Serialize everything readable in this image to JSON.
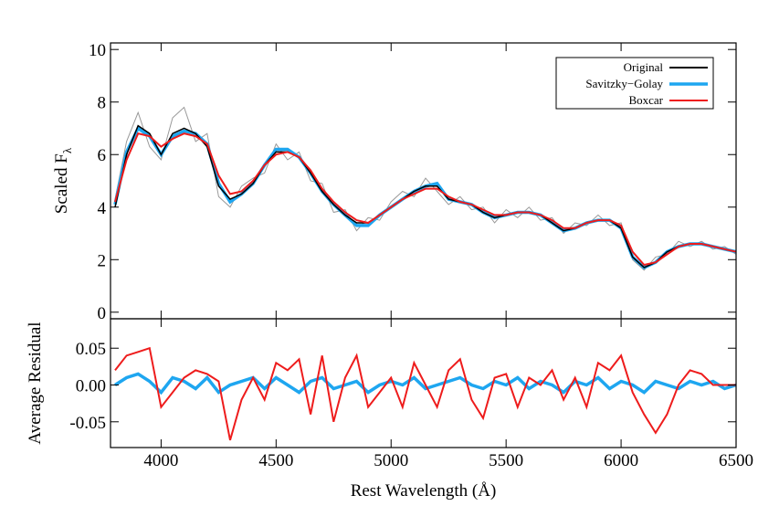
{
  "chart_data": [
    {
      "type": "line",
      "ylabel": "Scaled F",
      "ylabel_sub": "λ",
      "x": [
        3800,
        3850,
        3900,
        3950,
        4000,
        4050,
        4100,
        4150,
        4200,
        4250,
        4300,
        4350,
        4400,
        4450,
        4500,
        4550,
        4600,
        4650,
        4700,
        4750,
        4800,
        4850,
        4900,
        4950,
        5000,
        5050,
        5100,
        5150,
        5200,
        5250,
        5300,
        5350,
        5400,
        5450,
        5500,
        5550,
        5600,
        5650,
        5700,
        5750,
        5800,
        5850,
        5900,
        5950,
        6000,
        6050,
        6100,
        6150,
        6200,
        6250,
        6300,
        6350,
        6400,
        6450,
        6500
      ],
      "xlim": [
        3780,
        6500
      ],
      "xticks": [
        4000,
        4500,
        5000,
        5500,
        6000,
        6500
      ],
      "ylim": [
        -0.25,
        10.25
      ],
      "yticks": [
        0,
        2,
        4,
        6,
        8,
        10
      ],
      "legend": "upper right",
      "series": [
        {
          "color": "#999999",
          "values": [
            4.3,
            6.5,
            7.6,
            6.3,
            5.8,
            7.4,
            7.8,
            6.5,
            6.8,
            4.4,
            4.0,
            4.8,
            5.1,
            5.3,
            6.4,
            5.8,
            6.1,
            5.0,
            4.9,
            3.8,
            3.9,
            3.1,
            3.6,
            3.5,
            4.2,
            4.6,
            4.4,
            5.1,
            4.6,
            4.1,
            4.4,
            3.9,
            4.0,
            3.4,
            3.9,
            3.6,
            4.0,
            3.5,
            3.6,
            3.0,
            3.4,
            3.3,
            3.7,
            3.3,
            3.4,
            2.0,
            1.6,
            2.1,
            2.2,
            2.7,
            2.5,
            2.7,
            2.4,
            2.5,
            2.2
          ]
        },
        {
          "name": "Savitzky−Golay",
          "color": "#1ea6f0",
          "values": [
            4.1,
            6.1,
            7.0,
            6.7,
            6.0,
            6.7,
            6.9,
            6.8,
            6.4,
            4.9,
            4.2,
            4.5,
            4.9,
            5.6,
            6.2,
            6.2,
            5.9,
            5.3,
            4.6,
            4.1,
            3.7,
            3.3,
            3.3,
            3.7,
            4.0,
            4.3,
            4.6,
            4.8,
            4.9,
            4.3,
            4.2,
            4.1,
            3.8,
            3.6,
            3.7,
            3.8,
            3.8,
            3.7,
            3.4,
            3.1,
            3.2,
            3.4,
            3.5,
            3.5,
            3.2,
            2.1,
            1.7,
            1.9,
            2.3,
            2.5,
            2.6,
            2.6,
            2.5,
            2.4,
            2.3
          ]
        },
        {
          "name": "Original",
          "color": "#000000",
          "values": [
            4.0,
            6.0,
            7.1,
            6.8,
            6.0,
            6.8,
            7.0,
            6.8,
            6.3,
            4.8,
            4.3,
            4.5,
            4.9,
            5.6,
            6.1,
            6.1,
            5.9,
            5.3,
            4.6,
            4.1,
            3.7,
            3.4,
            3.4,
            3.7,
            4.0,
            4.3,
            4.6,
            4.8,
            4.8,
            4.3,
            4.2,
            4.1,
            3.8,
            3.6,
            3.7,
            3.8,
            3.8,
            3.7,
            3.4,
            3.1,
            3.2,
            3.4,
            3.5,
            3.5,
            3.2,
            2.1,
            1.7,
            1.9,
            2.3,
            2.5,
            2.6,
            2.6,
            2.5,
            2.4,
            2.3
          ]
        },
        {
          "name": "Boxcar",
          "color": "#ee1c1c",
          "values": [
            4.2,
            5.8,
            6.8,
            6.7,
            6.3,
            6.6,
            6.8,
            6.7,
            6.4,
            5.2,
            4.5,
            4.6,
            5.0,
            5.6,
            6.0,
            6.1,
            5.9,
            5.4,
            4.7,
            4.2,
            3.8,
            3.5,
            3.4,
            3.7,
            4.0,
            4.3,
            4.5,
            4.7,
            4.7,
            4.4,
            4.2,
            4.1,
            3.9,
            3.7,
            3.7,
            3.8,
            3.8,
            3.7,
            3.5,
            3.2,
            3.2,
            3.4,
            3.5,
            3.5,
            3.3,
            2.3,
            1.8,
            1.9,
            2.2,
            2.5,
            2.6,
            2.6,
            2.5,
            2.4,
            2.3
          ]
        }
      ]
    },
    {
      "type": "line",
      "ylabel": "Average Residual",
      "xlabel": "Rest Wavelength (Å)",
      "x": [
        3800,
        3850,
        3900,
        3950,
        4000,
        4050,
        4100,
        4150,
        4200,
        4250,
        4300,
        4350,
        4400,
        4450,
        4500,
        4550,
        4600,
        4650,
        4700,
        4750,
        4800,
        4850,
        4900,
        4950,
        5000,
        5050,
        5100,
        5150,
        5200,
        5250,
        5300,
        5350,
        5400,
        5450,
        5500,
        5550,
        5600,
        5650,
        5700,
        5750,
        5800,
        5850,
        5900,
        5950,
        6000,
        6050,
        6100,
        6150,
        6200,
        6250,
        6300,
        6350,
        6400,
        6450,
        6500
      ],
      "xlim": [
        3780,
        6500
      ],
      "xticks": [
        4000,
        4500,
        5000,
        5500,
        6000,
        6500
      ],
      "ylim": [
        -0.085,
        0.09
      ],
      "yticks": [
        -0.05,
        {
          "value": 0,
          "label": "0.00"
        },
        0.05
      ],
      "series": [
        {
          "color": "#1ea6f0",
          "values": [
            0.0,
            0.01,
            0.015,
            0.005,
            -0.01,
            0.01,
            0.005,
            -0.005,
            0.01,
            -0.01,
            0.0,
            0.005,
            0.01,
            -0.005,
            0.01,
            0.0,
            -0.01,
            0.005,
            0.01,
            -0.005,
            0.0,
            0.005,
            -0.01,
            0.0,
            0.005,
            0.0,
            0.01,
            -0.005,
            0.0,
            0.005,
            0.01,
            0.0,
            -0.005,
            0.005,
            0.0,
            0.01,
            -0.005,
            0.005,
            0.0,
            -0.01,
            0.005,
            0.0,
            0.01,
            -0.005,
            0.005,
            0.0,
            -0.01,
            0.005,
            0.0,
            -0.005,
            0.005,
            0.0,
            0.005,
            -0.005,
            0.0
          ]
        },
        {
          "color": "#ee1c1c",
          "values": [
            0.02,
            0.04,
            0.045,
            0.05,
            -0.03,
            -0.01,
            0.01,
            0.02,
            0.015,
            0.005,
            -0.075,
            -0.02,
            0.01,
            -0.02,
            0.03,
            0.02,
            0.035,
            -0.04,
            0.04,
            -0.05,
            0.01,
            0.04,
            -0.03,
            -0.01,
            0.01,
            -0.03,
            0.03,
            0.0,
            -0.03,
            0.02,
            0.035,
            -0.02,
            -0.045,
            0.01,
            0.015,
            -0.03,
            0.01,
            0.0,
            0.02,
            -0.02,
            0.01,
            -0.03,
            0.03,
            0.02,
            0.04,
            -0.01,
            -0.04,
            -0.065,
            -0.04,
            0.0,
            0.02,
            0.015,
            0.0,
            0.0,
            0.0
          ]
        }
      ]
    }
  ]
}
